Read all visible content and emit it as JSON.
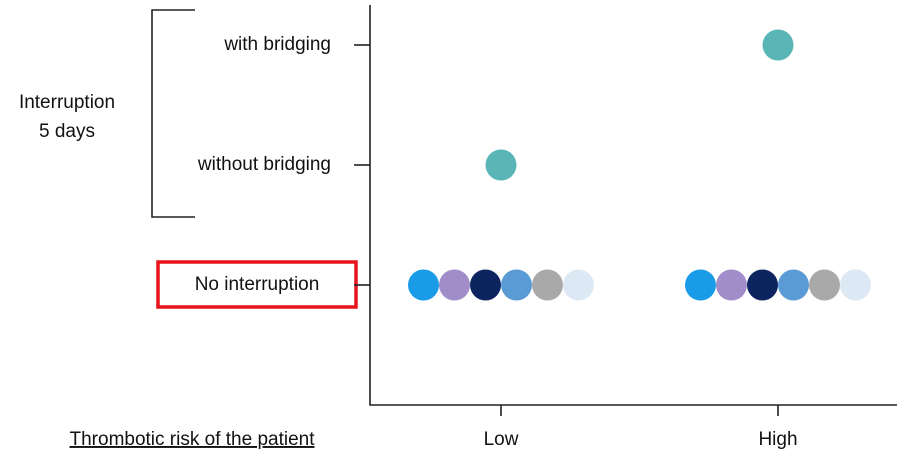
{
  "group_label": [
    "Interruption",
    "5 days"
  ],
  "y_categories": [
    "with bridging",
    "without bridging",
    "No interruption"
  ],
  "highlighted_category": "No interruption",
  "x_axis_label": "Thrombotic risk of the patient",
  "x_categories": [
    "Low",
    "High"
  ],
  "dots": [
    {
      "x": "High",
      "y": "with bridging",
      "colors": [
        "#5ab5b6"
      ]
    },
    {
      "x": "Low",
      "y": "without bridging",
      "colors": [
        "#5ab5b6"
      ]
    },
    {
      "x": "Low",
      "y": "No interruption",
      "colors": [
        "#1a9be8",
        "#a08dc9",
        "#0c2560",
        "#5b9bd5",
        "#a9a9a9",
        "#dde8f5"
      ]
    },
    {
      "x": "High",
      "y": "No interruption",
      "colors": [
        "#1a9be8",
        "#a08dc9",
        "#0c2560",
        "#5b9bd5",
        "#a9a9a9",
        "#dde8f5"
      ]
    }
  ]
}
